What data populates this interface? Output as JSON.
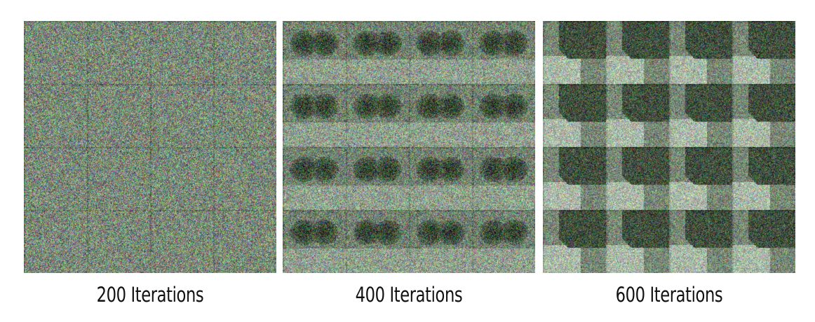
{
  "figure": {
    "panels": [
      {
        "caption": "200 Iterations",
        "grid": "4x4",
        "pattern": "noise"
      },
      {
        "caption": "400 Iterations",
        "grid": "4x4",
        "pattern": "dark-blob"
      },
      {
        "caption": "600 Iterations",
        "grid": "4x4",
        "pattern": "dark-wedge-light-bottom"
      }
    ]
  }
}
